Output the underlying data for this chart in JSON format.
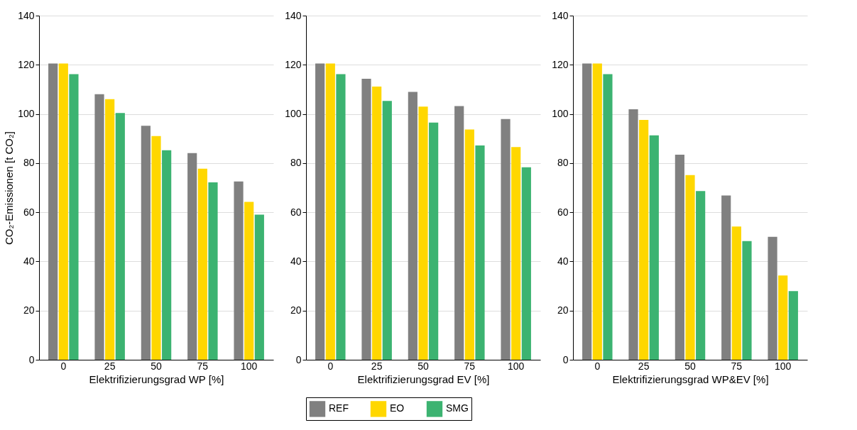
{
  "chart_data": [
    {
      "type": "bar",
      "categories": [
        "0",
        "25",
        "50",
        "75",
        "100"
      ],
      "xlabel": "Elektrifizierungsgrad WP [%]",
      "ylabel": "CO₂-Emissionen [t CO₂]",
      "ylim": [
        0,
        140
      ],
      "yticks": [
        0,
        20,
        40,
        60,
        80,
        100,
        120,
        140
      ],
      "grid": "y",
      "legend": "bottom",
      "series": [
        {
          "name": "REF",
          "color": "#808080",
          "values": [
            120.5,
            108,
            95.2,
            84.1,
            72.5
          ]
        },
        {
          "name": "EO",
          "color": "#ffd700",
          "values": [
            120.5,
            106,
            91,
            77.7,
            64.2
          ]
        },
        {
          "name": "SMG",
          "color": "#3cb371",
          "values": [
            116.2,
            100.4,
            85.2,
            72.2,
            59
          ]
        }
      ]
    },
    {
      "type": "bar",
      "categories": [
        "0",
        "25",
        "50",
        "75",
        "100"
      ],
      "xlabel": "Elektrifizierungsgrad EV [%]",
      "ylim": [
        0,
        140
      ],
      "yticks": [
        0,
        20,
        40,
        60,
        80,
        100,
        120,
        140
      ],
      "grid": "y",
      "legend": "bottom",
      "series": [
        {
          "name": "REF",
          "color": "#808080",
          "values": [
            120.5,
            114.3,
            109,
            103.2,
            97.9
          ]
        },
        {
          "name": "EO",
          "color": "#ffd700",
          "values": [
            120.5,
            111.1,
            103,
            93.7,
            86.5
          ]
        },
        {
          "name": "SMG",
          "color": "#3cb371",
          "values": [
            116.2,
            105.3,
            96.5,
            87.2,
            78.3
          ]
        }
      ]
    },
    {
      "type": "bar",
      "categories": [
        "0",
        "25",
        "50",
        "75",
        "100"
      ],
      "xlabel": "Elektrifizierungsgrad WP&EV [%]",
      "ylim": [
        0,
        140
      ],
      "yticks": [
        0,
        20,
        40,
        60,
        80,
        100,
        120,
        140
      ],
      "grid": "y",
      "legend": "bottom",
      "series": [
        {
          "name": "REF",
          "color": "#808080",
          "values": [
            120.5,
            101.9,
            83.4,
            66.8,
            50
          ]
        },
        {
          "name": "EO",
          "color": "#ffd700",
          "values": [
            120.5,
            97.6,
            75.1,
            54.2,
            34.3
          ]
        },
        {
          "name": "SMG",
          "color": "#3cb371",
          "values": [
            116.2,
            91.3,
            68.6,
            48.3,
            27.9
          ]
        }
      ]
    }
  ]
}
